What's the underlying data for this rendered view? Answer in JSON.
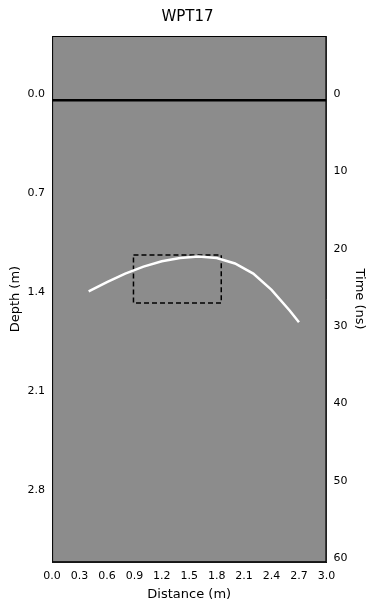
{
  "chart_data": {
    "type": "line",
    "title": "WPT17",
    "x_label": "Distance (m)",
    "y_label": "Depth (m)",
    "y2_label": "Time (ns)",
    "xlim": [
      0,
      3.0
    ],
    "xticks": [
      {
        "value": 0,
        "label": "0.0"
      },
      0.3,
      0.6,
      0.9,
      1.2,
      1.5,
      1.8,
      2.1,
      2.4,
      2.7,
      {
        "value": 3,
        "label": "3.0"
      }
    ],
    "ylim": [
      -0.41,
      3.31
    ],
    "yticks": [
      {
        "value": 0,
        "label": "0.0"
      },
      0.7,
      1.4,
      2.1,
      2.8
    ],
    "y2lim": [
      -7.5,
      60.5
    ],
    "y2ticks": [
      0,
      10,
      20,
      30,
      40,
      50,
      60
    ],
    "grid": false,
    "series": [
      {
        "color": "#000000",
        "line_style": "solid",
        "axis": "y2",
        "x": [
          0,
          3.0
        ],
        "values": [
          0.8,
          0.8
        ]
      },
      {
        "color": "#ffffff",
        "line_style": "solid",
        "axis": "y2",
        "x": [
          0.4,
          0.6,
          0.8,
          1.0,
          1.2,
          1.4,
          1.6,
          1.8,
          2.0,
          2.2,
          2.4,
          2.6,
          2.7
        ],
        "values": [
          25.5,
          24.3,
          23.2,
          22.3,
          21.6,
          21.2,
          21.0,
          21.2,
          21.9,
          23.2,
          25.3,
          28.0,
          29.5
        ]
      },
      {
        "color": "#000000",
        "line_style": "dashed",
        "axis": "y2",
        "x": [
          0.89,
          1.85,
          1.85,
          0.89,
          0.89
        ],
        "values": [
          20.8,
          20.8,
          27.0,
          27.0,
          20.8
        ]
      }
    ]
  }
}
